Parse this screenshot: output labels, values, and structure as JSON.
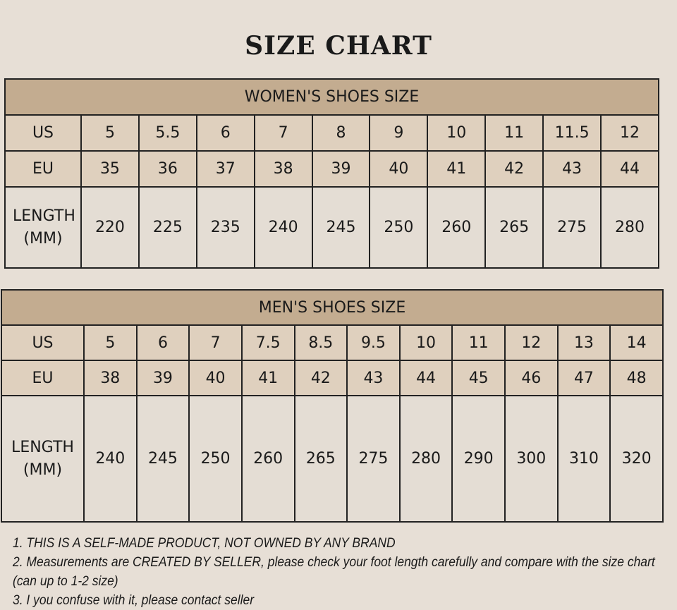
{
  "title": "SIZE CHART",
  "women": {
    "header": "WOMEN'S SHOES SIZE",
    "rows": [
      {
        "label": "US",
        "values": [
          "5",
          "5.5",
          "6",
          "7",
          "8",
          "9",
          "10",
          "11",
          "11.5",
          "12"
        ]
      },
      {
        "label": "EU",
        "values": [
          "35",
          "36",
          "37",
          "38",
          "39",
          "40",
          "41",
          "42",
          "43",
          "44"
        ]
      },
      {
        "label": "LENGTH (MM)",
        "values": [
          "220",
          "225",
          "235",
          "240",
          "245",
          "250",
          "260",
          "265",
          "275",
          "280"
        ]
      }
    ]
  },
  "men": {
    "header": "MEN'S SHOES SIZE",
    "rows": [
      {
        "label": "US",
        "values": [
          "5",
          "6",
          "7",
          "7.5",
          "8.5",
          "9.5",
          "10",
          "11",
          "12",
          "13",
          "14"
        ]
      },
      {
        "label": "EU",
        "values": [
          "38",
          "39",
          "40",
          "41",
          "42",
          "43",
          "44",
          "45",
          "46",
          "47",
          "48"
        ]
      },
      {
        "label": "LENGTH (MM)",
        "values": [
          "240",
          "245",
          "250",
          "260",
          "265",
          "275",
          "280",
          "290",
          "300",
          "310",
          "320"
        ]
      }
    ]
  },
  "notes": [
    "1. THIS IS A SELF-MADE PRODUCT, NOT OWNED BY ANY BRAND",
    "2. Measurements are CREATED BY SELLER, please check your foot length carefully and compare with the size chart (can up to 1-2 size)",
    "3. I you confuse with it, please contact seller"
  ],
  "colors": {
    "header": "#c3ac90",
    "cell": "#dfd0be",
    "background": "#e7dfd6"
  }
}
